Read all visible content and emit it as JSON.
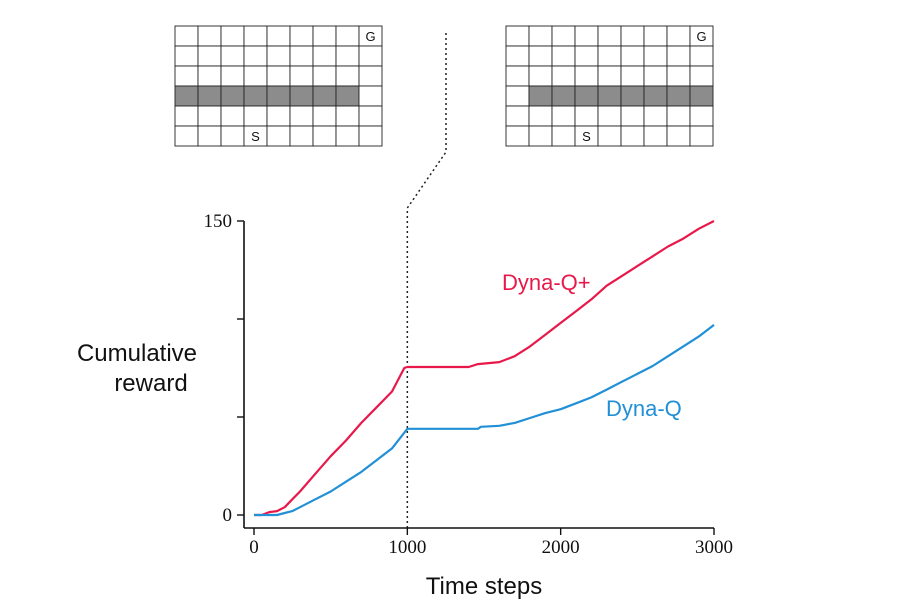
{
  "chart_data": {
    "type": "line",
    "title": "",
    "xlabel": "Time steps",
    "ylabel": "Cumulative reward",
    "xlim": [
      0,
      3000
    ],
    "ylim": [
      0,
      150
    ],
    "x_ticks": [
      "0",
      "1000",
      "2000",
      "3000"
    ],
    "y_ticks": [
      "0",
      "150"
    ],
    "change_marker_x": 1000,
    "grid": false,
    "series": [
      {
        "name": "Dyna-Q+",
        "color": "#e8194a",
        "points": [
          [
            0,
            0
          ],
          [
            50,
            0
          ],
          [
            100,
            1.5
          ],
          [
            150,
            2
          ],
          [
            200,
            4
          ],
          [
            250,
            8
          ],
          [
            300,
            12
          ],
          [
            400,
            21
          ],
          [
            500,
            30
          ],
          [
            600,
            38
          ],
          [
            700,
            47
          ],
          [
            800,
            55
          ],
          [
            900,
            63
          ],
          [
            980,
            75
          ],
          [
            1000,
            75.5
          ],
          [
            1400,
            75.5
          ],
          [
            1460,
            77
          ],
          [
            1600,
            78
          ],
          [
            1700,
            81
          ],
          [
            1800,
            86
          ],
          [
            1900,
            92
          ],
          [
            2000,
            98
          ],
          [
            2100,
            104
          ],
          [
            2200,
            110
          ],
          [
            2300,
            117
          ],
          [
            2400,
            122
          ],
          [
            2500,
            127
          ],
          [
            2600,
            132
          ],
          [
            2700,
            137
          ],
          [
            2800,
            141
          ],
          [
            2900,
            146
          ],
          [
            3000,
            150
          ]
        ]
      },
      {
        "name": "Dyna-Q",
        "color": "#2190d6",
        "points": [
          [
            0,
            0
          ],
          [
            50,
            0
          ],
          [
            150,
            0
          ],
          [
            200,
            1
          ],
          [
            250,
            2
          ],
          [
            300,
            4
          ],
          [
            400,
            8
          ],
          [
            500,
            12
          ],
          [
            600,
            17
          ],
          [
            700,
            22
          ],
          [
            800,
            28
          ],
          [
            900,
            34
          ],
          [
            980,
            42
          ],
          [
            1000,
            44
          ],
          [
            1460,
            44
          ],
          [
            1480,
            45
          ],
          [
            1600,
            45.5
          ],
          [
            1700,
            47
          ],
          [
            1800,
            49.5
          ],
          [
            1900,
            52
          ],
          [
            2000,
            54
          ],
          [
            2100,
            57
          ],
          [
            2200,
            60
          ],
          [
            2300,
            64
          ],
          [
            2400,
            68
          ],
          [
            2500,
            72
          ],
          [
            2600,
            76
          ],
          [
            2700,
            81
          ],
          [
            2800,
            86
          ],
          [
            2900,
            91
          ],
          [
            3000,
            97
          ]
        ]
      }
    ]
  },
  "mazes": {
    "cols": 9,
    "rows": 6,
    "left": {
      "wall_row": 3,
      "wall_cols": [
        0,
        1,
        2,
        3,
        4,
        5,
        6,
        7
      ],
      "start": {
        "row": 5,
        "col": 3,
        "label": "S"
      },
      "goal": {
        "row": 0,
        "col": 8,
        "label": "G"
      }
    },
    "right": {
      "wall_row": 3,
      "wall_cols": [
        1,
        2,
        3,
        4,
        5,
        6,
        7,
        8
      ],
      "start": {
        "row": 5,
        "col": 3,
        "label": "S"
      },
      "goal": {
        "row": 0,
        "col": 8,
        "label": "G"
      }
    }
  }
}
